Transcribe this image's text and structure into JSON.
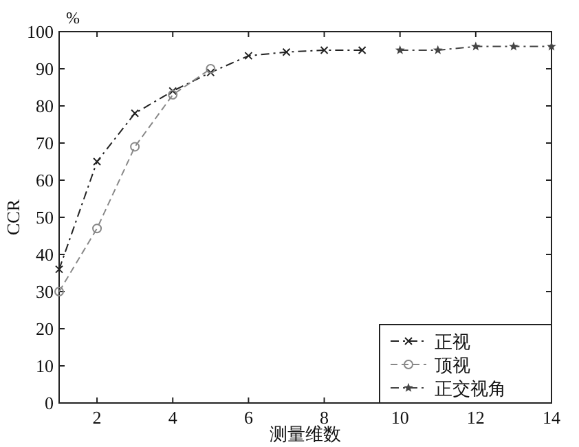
{
  "chart_data": {
    "type": "line",
    "xlabel": "测量维数",
    "ylabel": "CCR",
    "annotations": [
      "%"
    ],
    "xlim": [
      1,
      14
    ],
    "xticks": [
      2,
      4,
      6,
      8,
      10,
      12,
      14
    ],
    "ylim": [
      0,
      100
    ],
    "yticks": [
      0,
      10,
      20,
      30,
      40,
      50,
      60,
      70,
      80,
      90,
      100
    ],
    "grid": false,
    "legend": "bottom right",
    "series": [
      {
        "name": "正视",
        "color": "#222222",
        "marker": "cross",
        "line_style": "dashdot",
        "x": [
          1,
          2,
          3,
          4,
          5,
          6,
          7,
          8,
          9
        ],
        "values": [
          36,
          65,
          78,
          84,
          89,
          93.5,
          94.5,
          95,
          95
        ]
      },
      {
        "name": "顶视",
        "color": "#888888",
        "marker": "circle",
        "line_style": "dashed",
        "x": [
          1,
          2,
          3,
          4,
          5
        ],
        "values": [
          30,
          47,
          69,
          83,
          90
        ]
      },
      {
        "name": "正交视角",
        "color": "#444444",
        "marker": "star",
        "line_style": "dashdot",
        "x": [
          10,
          11,
          12,
          13,
          14
        ],
        "values": [
          95,
          95,
          96,
          96,
          96
        ]
      }
    ]
  }
}
